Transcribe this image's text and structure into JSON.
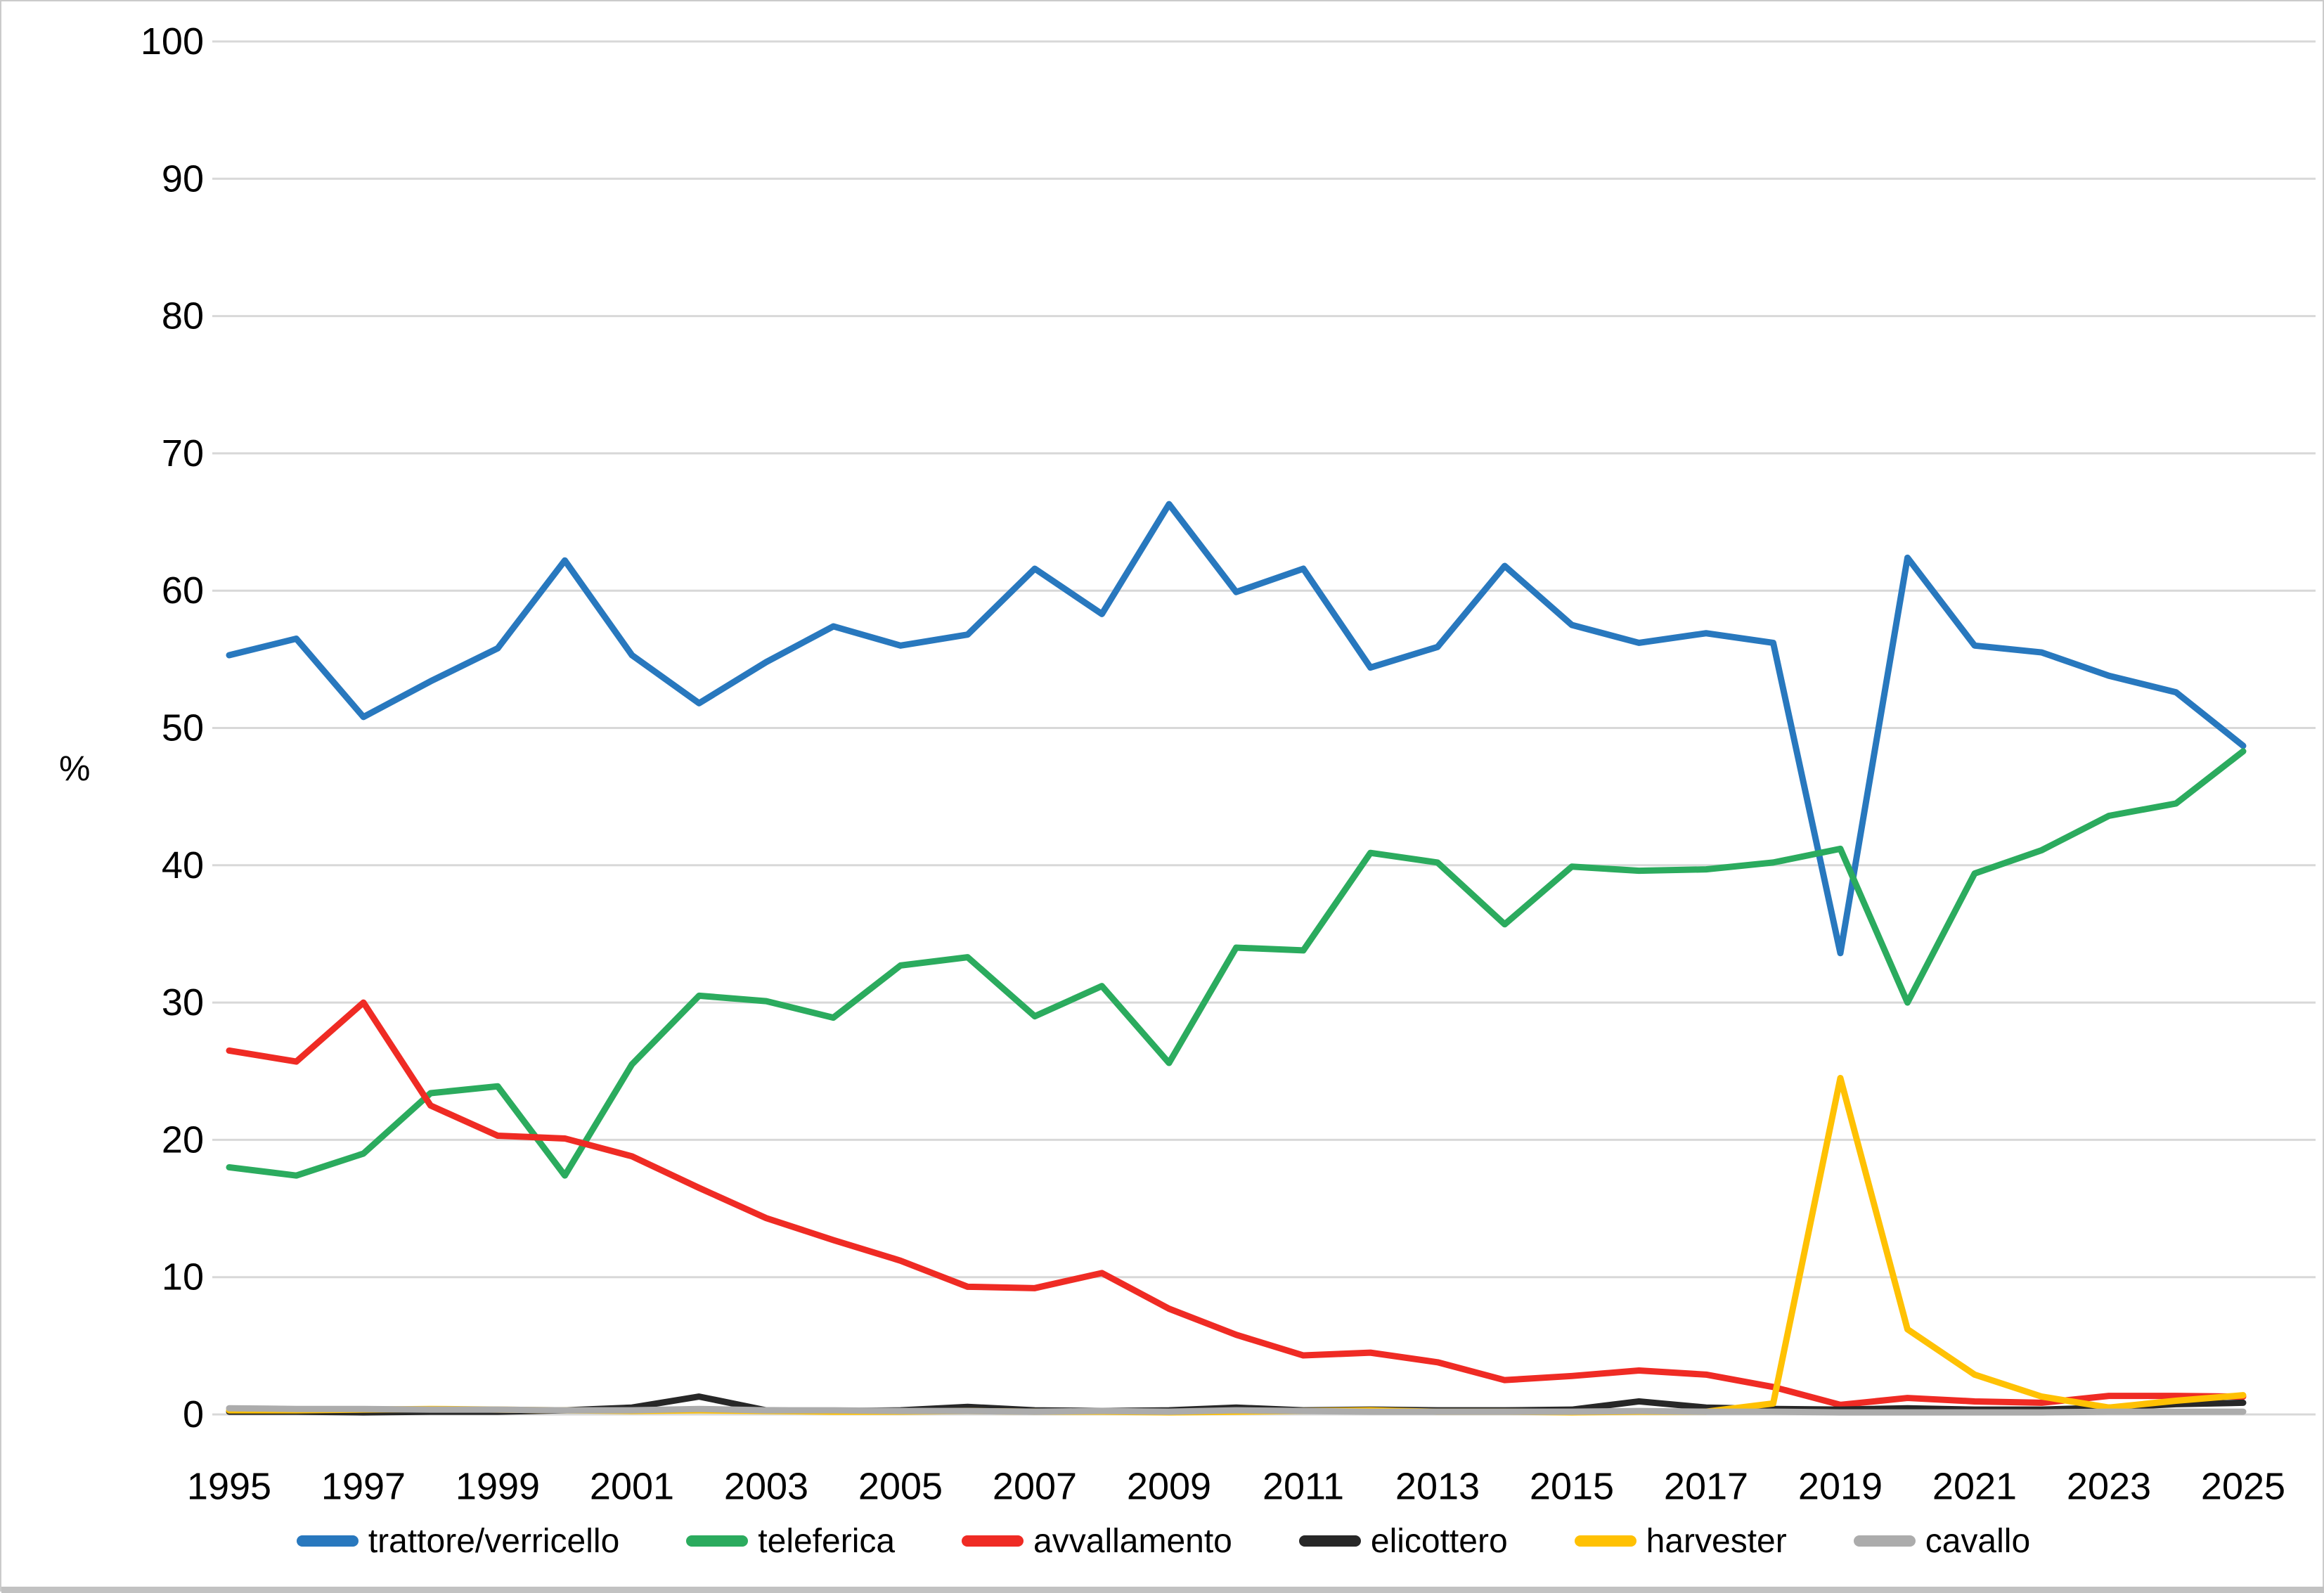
{
  "chart_data": {
    "type": "line",
    "title": "",
    "xlabel": "",
    "ylabel": "%",
    "ylim": [
      0,
      100
    ],
    "ytick_step": 10,
    "grid": true,
    "legend_position": "bottom",
    "x": [
      1995,
      1996,
      1997,
      1998,
      1999,
      2000,
      2001,
      2002,
      2003,
      2004,
      2005,
      2006,
      2007,
      2008,
      2009,
      2010,
      2011,
      2012,
      2013,
      2014,
      2015,
      2016,
      2017,
      2018,
      2019,
      2020,
      2021,
      2022,
      2023,
      2024,
      2025
    ],
    "xtick_labels": [
      "1995",
      "1997",
      "1999",
      "2001",
      "2003",
      "2005",
      "2007",
      "2009",
      "2011",
      "2013",
      "2015",
      "2017",
      "2019",
      "2021",
      "2023",
      "2025"
    ],
    "ytick_labels": [
      "0",
      "10",
      "20",
      "30",
      "40",
      "50",
      "60",
      "70",
      "80",
      "90",
      "100"
    ],
    "series": [
      {
        "name": "trattore/verricello",
        "color": "#2878BE",
        "values": [
          55.3,
          56.5,
          50.8,
          53.4,
          55.8,
          62.2,
          55.3,
          51.8,
          54.8,
          57.4,
          56.0,
          56.8,
          61.6,
          58.3,
          66.3,
          59.9,
          61.6,
          54.4,
          55.9,
          61.8,
          57.5,
          56.2,
          56.9,
          56.2,
          33.6,
          62.4,
          56.0,
          55.5,
          53.8,
          52.6,
          48.7
        ]
      },
      {
        "name": "teleferica",
        "color": "#2BAB5E",
        "values": [
          18.0,
          17.4,
          19.0,
          23.4,
          23.9,
          17.4,
          25.5,
          30.5,
          30.1,
          28.9,
          32.7,
          33.3,
          29.0,
          31.2,
          25.6,
          34.0,
          33.8,
          40.9,
          40.2,
          35.7,
          39.9,
          39.6,
          39.7,
          40.2,
          41.2,
          30.0,
          39.4,
          41.1,
          43.6,
          44.5,
          48.3
        ]
      },
      {
        "name": "avvallamento",
        "color": "#EF2B24",
        "values": [
          26.5,
          25.7,
          30.0,
          22.5,
          20.3,
          20.1,
          18.8,
          16.5,
          14.3,
          12.7,
          11.2,
          9.3,
          9.2,
          10.3,
          7.7,
          5.8,
          4.3,
          4.5,
          3.8,
          2.5,
          2.8,
          3.2,
          2.9,
          2.0,
          0.7,
          1.2,
          0.95,
          0.85,
          1.35,
          1.35,
          1.3
        ]
      },
      {
        "name": "elicottero",
        "color": "#272727",
        "values": [
          0.2,
          0.2,
          0.15,
          0.2,
          0.2,
          0.3,
          0.5,
          1.3,
          0.3,
          0.25,
          0.3,
          0.55,
          0.3,
          0.25,
          0.3,
          0.5,
          0.3,
          0.35,
          0.3,
          0.3,
          0.35,
          0.95,
          0.5,
          0.4,
          0.35,
          0.45,
          0.35,
          0.35,
          0.5,
          0.75,
          0.85
        ]
      },
      {
        "name": "harvester",
        "color": "#FFC103",
        "values": [
          0.3,
          0.3,
          0.35,
          0.4,
          0.35,
          0.3,
          0.25,
          0.3,
          0.25,
          0.2,
          0.2,
          0.25,
          0.2,
          0.2,
          0.15,
          0.2,
          0.25,
          0.3,
          0.2,
          0.2,
          0.15,
          0.2,
          0.2,
          0.8,
          24.5,
          6.2,
          2.9,
          1.3,
          0.5,
          1.0,
          1.4
        ]
      },
      {
        "name": "cavallo",
        "color": "#ACACAC",
        "values": [
          0.45,
          0.4,
          0.4,
          0.35,
          0.35,
          0.3,
          0.3,
          0.4,
          0.3,
          0.3,
          0.25,
          0.25,
          0.2,
          0.25,
          0.2,
          0.3,
          0.25,
          0.2,
          0.2,
          0.2,
          0.2,
          0.25,
          0.2,
          0.2,
          0.15,
          0.15,
          0.15,
          0.15,
          0.2,
          0.2,
          0.2
        ]
      }
    ],
    "gridline_color": "#D8D8D8"
  }
}
